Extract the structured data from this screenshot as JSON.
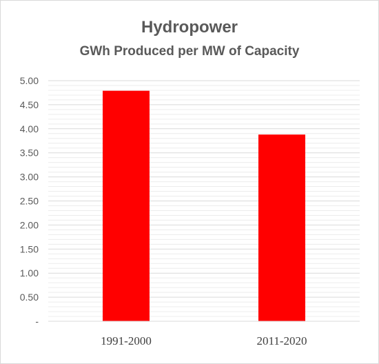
{
  "chart_data": {
    "type": "bar",
    "title": "Hydropower",
    "subtitle": "GWh Produced per MW of Capacity",
    "xlabel": "",
    "ylabel": "",
    "categories": [
      "1991-2000",
      "2011-2020"
    ],
    "values": [
      4.79,
      3.88
    ],
    "ylim": [
      0,
      5
    ],
    "y_ticks": [
      "-",
      "0.50",
      "1.00",
      "1.50",
      "2.00",
      "2.50",
      "3.00",
      "3.50",
      "4.00",
      "4.50",
      "5.00"
    ],
    "grid": true,
    "legend": "none",
    "bar_color": "#ff0000"
  }
}
